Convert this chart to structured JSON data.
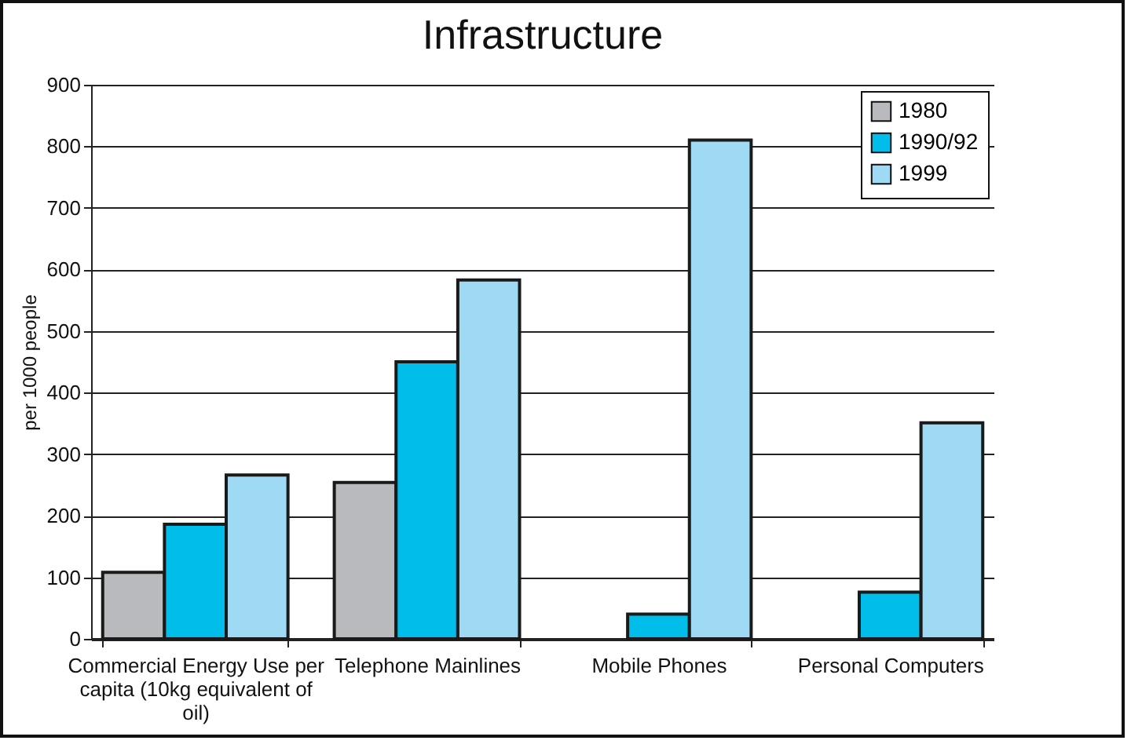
{
  "chart_data": {
    "type": "bar",
    "title": "Infrastructure",
    "ylabel": "per 1000 people",
    "categories": [
      "Commercial Energy Use per capita (10kg equivalent of oil)",
      "Telephone Mainlines",
      "Mobile Phones",
      "Personal Computers"
    ],
    "series": [
      {
        "name": "1980",
        "color": "#b9babe",
        "values": [
          108,
          254,
          null,
          null
        ]
      },
      {
        "name": "1990/92",
        "color": "#00bdea",
        "values": [
          186,
          450,
          40,
          76
        ]
      },
      {
        "name": "1999",
        "color": "#9edaf3",
        "values": [
          266,
          583,
          810,
          351
        ]
      }
    ],
    "ylim": [
      0,
      900
    ],
    "yticks": [
      0,
      100,
      200,
      300,
      400,
      500,
      600,
      700,
      800,
      900
    ],
    "grid": "y",
    "legend": "top right"
  }
}
